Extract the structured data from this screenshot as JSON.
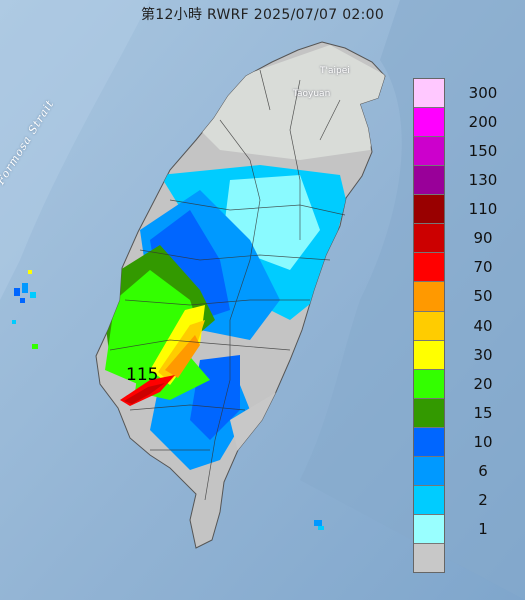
{
  "title": "第12小時 RWRF 2025/07/07 02:00",
  "labels": {
    "strait": "Formosa Strait",
    "taipei": "T'aipei",
    "taoyuan": "Taoyuan",
    "max_value": "115"
  },
  "legend": [
    {
      "label": "300",
      "color": "#ffc8ff"
    },
    {
      "label": "200",
      "color": "#ff00ff"
    },
    {
      "label": "150",
      "color": "#cc00cc"
    },
    {
      "label": "130",
      "color": "#990099"
    },
    {
      "label": "110",
      "color": "#990000"
    },
    {
      "label": "90",
      "color": "#cc0000"
    },
    {
      "label": "70",
      "color": "#ff0000"
    },
    {
      "label": "50",
      "color": "#ff9900"
    },
    {
      "label": "40",
      "color": "#ffcc00"
    },
    {
      "label": "30",
      "color": "#ffff00"
    },
    {
      "label": "20",
      "color": "#33ff00"
    },
    {
      "label": "15",
      "color": "#339900"
    },
    {
      "label": "10",
      "color": "#0066ff"
    },
    {
      "label": "6",
      "color": "#0099ff"
    },
    {
      "label": "2",
      "color": "#00ccff"
    },
    {
      "label": "1",
      "color": "#99ffff"
    },
    {
      "label": "",
      "color": "#c8c8c8"
    }
  ]
}
